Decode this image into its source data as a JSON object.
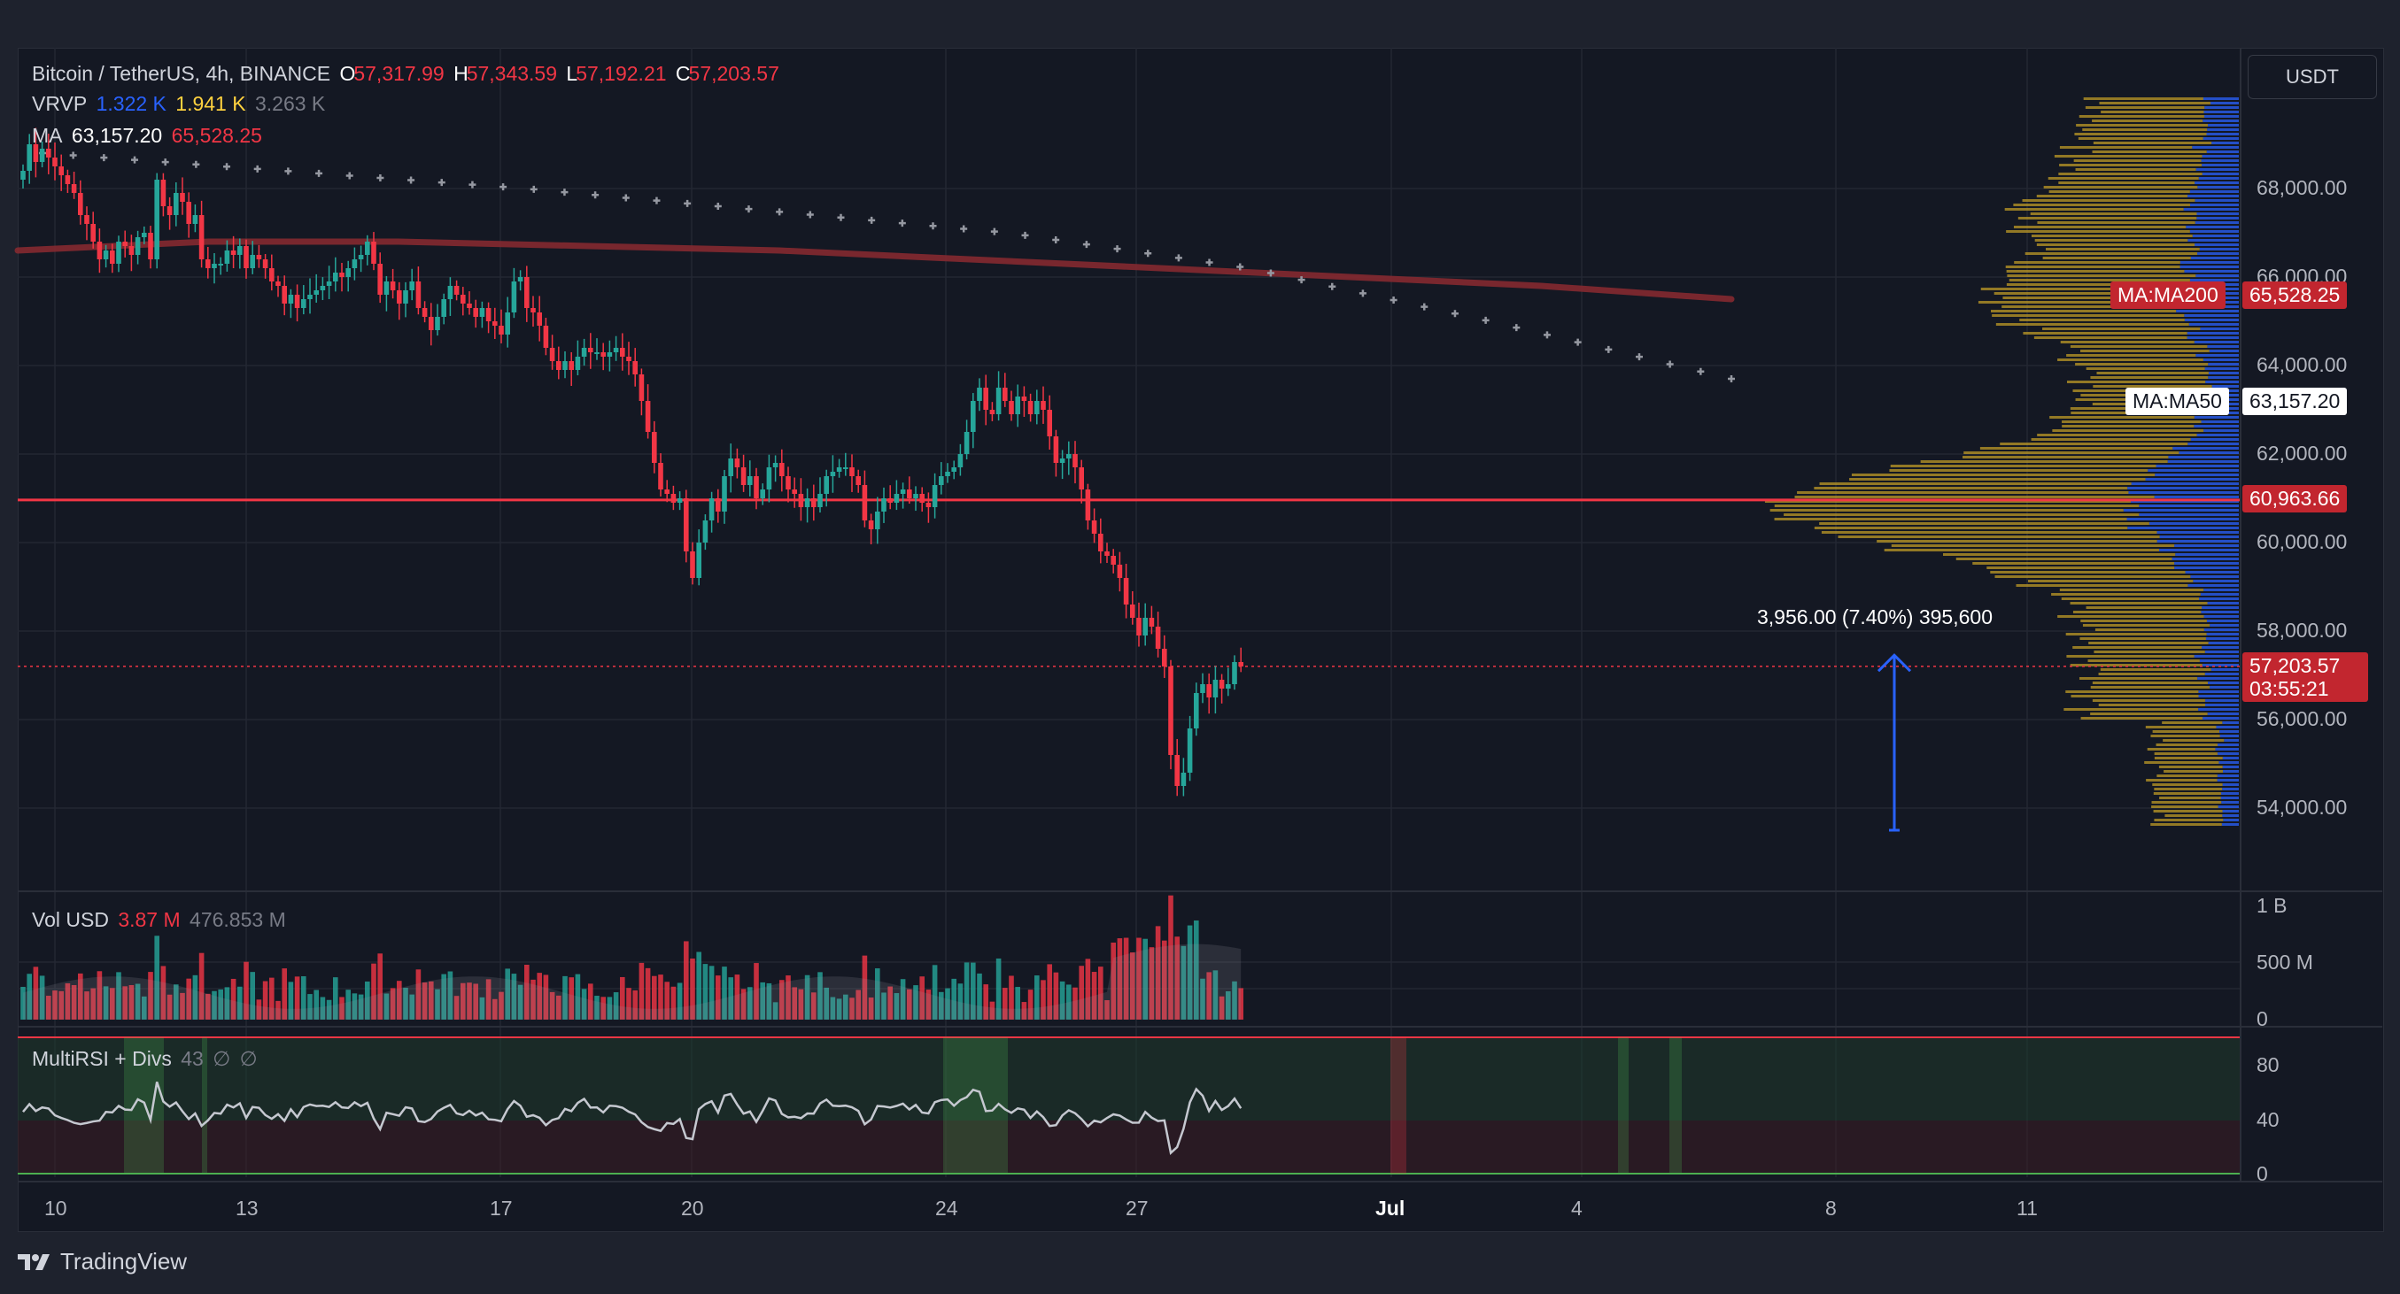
{
  "header": {
    "symbol": "Bitcoin / TetherUS, 4h, BINANCE",
    "open_label": "O",
    "open": "57,317.99",
    "high_label": "H",
    "high": "57,343.59",
    "low_label": "L",
    "low": "57,192.21",
    "close_label": "C",
    "close": "57,203.57"
  },
  "vrvp": {
    "label": "VRVP",
    "up": "1.322 K",
    "down": "1.941 K",
    "total": "3.263 K"
  },
  "ma": {
    "label": "MA",
    "v1": "63,157.20",
    "v2": "65,528.25"
  },
  "currency_button": "USDT",
  "price_axis": {
    "ticks": [
      "68,000.00",
      "66,000.00",
      "64,000.00",
      "62,000.00",
      "60,000.00",
      "58,000.00",
      "56,000.00",
      "54,000.00"
    ],
    "ma200_tag": "MA:MA200",
    "ma200_value": "65,528.25",
    "ma50_tag": "MA:MA50",
    "ma50_value": "63,157.20",
    "hline_value": "60,963.66",
    "last_price": "57,203.57",
    "countdown": "03:55:21"
  },
  "measure_label": "3,956.00 (7.40%) 395,600",
  "volume": {
    "label": "Vol USD",
    "last": "3.87 M",
    "ma": "476.853 M",
    "ticks": [
      "1 B",
      "500 M",
      "0"
    ]
  },
  "rsi": {
    "label": "MultiRSI + Divs",
    "value": "43",
    "s1": "∅",
    "s2": "∅",
    "ticks": [
      "80",
      "40",
      "0"
    ]
  },
  "time_axis": [
    "10",
    "13",
    "17",
    "20",
    "24",
    "27",
    "Jul",
    "4",
    "8",
    "11"
  ],
  "brand": "TradingView",
  "colors": {
    "up": "#26a69a",
    "down": "#f23645",
    "ma200": "#8b2a30",
    "hline": "#f23645",
    "vp_up": "#2962ff",
    "vp_down": "#c9a227"
  },
  "chart_data": {
    "type": "candlestick",
    "timeframe": "4h",
    "ylim": [
      53000,
      70000
    ],
    "closes": [
      68400,
      69000,
      68600,
      68900,
      68700,
      68500,
      68300,
      68100,
      67900,
      67400,
      67200,
      66800,
      66400,
      66600,
      66300,
      66800,
      66700,
      66500,
      66900,
      67000,
      66400,
      68200,
      67600,
      67400,
      67900,
      67700,
      67200,
      67400,
      66400,
      66200,
      66300,
      66300,
      66600,
      66500,
      66700,
      66200,
      66500,
      66400,
      66200,
      65900,
      65800,
      65400,
      65600,
      65300,
      65500,
      65600,
      65700,
      65800,
      65900,
      66100,
      66000,
      66200,
      66400,
      66500,
      66800,
      66300,
      65600,
      65900,
      65700,
      65400,
      65700,
      65900,
      65300,
      65100,
      64800,
      65100,
      65500,
      65800,
      65600,
      65400,
      65300,
      65100,
      65300,
      65000,
      64900,
      64700,
      65200,
      65900,
      66000,
      65300,
      65200,
      64900,
      64400,
      64100,
      63900,
      64100,
      63900,
      64200,
      64400,
      64300,
      64300,
      64200,
      64300,
      64400,
      64200,
      64100,
      63800,
      63200,
      62500,
      61800,
      61200,
      61100,
      60900,
      61000,
      59800,
      59200,
      60000,
      60500,
      61000,
      60700,
      61500,
      61900,
      61700,
      61300,
      61500,
      61000,
      61200,
      61700,
      61800,
      61500,
      61200,
      61100,
      60800,
      61000,
      60800,
      61100,
      61500,
      61600,
      61700,
      61700,
      61500,
      61300,
      60500,
      60300,
      60700,
      61000,
      60900,
      61100,
      61200,
      61000,
      61100,
      60900,
      60800,
      61300,
      61500,
      61600,
      61700,
      62000,
      62500,
      63200,
      63500,
      63000,
      62900,
      63500,
      63200,
      62900,
      63300,
      63200,
      62900,
      63200,
      63000,
      62400,
      61800,
      61900,
      62000,
      61700,
      61200,
      60500,
      60200,
      59800,
      59700,
      59500,
      59200,
      58600,
      58300,
      57900,
      58300,
      58100,
      57600,
      57200,
      55200,
      54500,
      54800,
      55800,
      56600,
      56800,
      56500,
      56900,
      56700,
      56800,
      57300,
      57200
    ],
    "ma200": [
      66600,
      66800,
      66800,
      66700,
      66600,
      66400,
      66200,
      66000,
      65800,
      65500
    ],
    "ma50": [
      68800,
      68400,
      68000,
      67500,
      67000,
      66200,
      65000,
      63700
    ],
    "hline": 60963.66,
    "last_price": 57203.57,
    "measure": {
      "from": 53500,
      "to": 57456,
      "change": "3,956.00",
      "percent": "7.40%",
      "volume": "395,600"
    },
    "volume_units": "USD",
    "volume_ylim": [
      0,
      1000000000
    ],
    "rsi_ylim": [
      0,
      100
    ],
    "rsi_bands": [
      40,
      80
    ],
    "x_labels": [
      "10",
      "13",
      "17",
      "20",
      "24",
      "27",
      "Jul",
      "4",
      "8",
      "11"
    ]
  }
}
